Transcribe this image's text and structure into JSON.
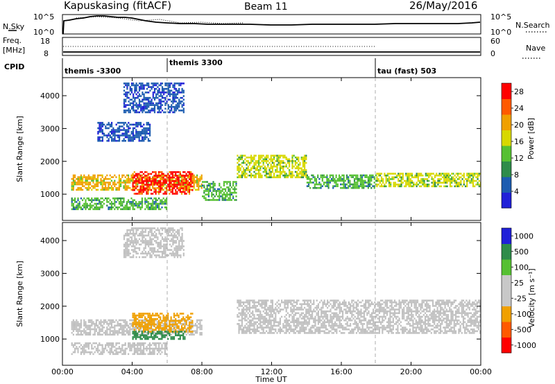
{
  "header": {
    "station": "Kapuskasing (fitACF)",
    "beam": "Beam 11",
    "date": "26/May/2016"
  },
  "nsky_panel": {
    "left_label": "N.Sky",
    "left_ticks": [
      "10^5",
      "10^0"
    ],
    "right_label": "N.Search",
    "right_ticks": [
      "10^5",
      "10^0"
    ]
  },
  "freq_panel": {
    "left_label_top": "Freq.",
    "left_label_bottom": "[MHz]",
    "left_ticks": [
      "18",
      "8"
    ],
    "right_label": "Nave",
    "right_ticks": [
      "60",
      "0"
    ]
  },
  "cpid_panel": {
    "label": "CPID",
    "modes": [
      {
        "name": "themis -3300",
        "start_hour": 0
      },
      {
        "name": "themis 3300",
        "start_hour": 6
      },
      {
        "name": "tau (fast) 503",
        "start_hour": 18
      }
    ]
  },
  "time_axis": {
    "label": "Time UT",
    "ticks": [
      "00:00",
      "04:00",
      "08:00",
      "12:00",
      "16:00",
      "20:00",
      "00:00"
    ]
  },
  "colors": {
    "power_scale": [
      "#2020d8",
      "#1c5cb0",
      "#2e8c4a",
      "#56c032",
      "#d8d800",
      "#f0a000",
      "#ff5a00",
      "#ff0000"
    ],
    "velocity_scale": [
      "#ff0000",
      "#ff5a00",
      "#f0a000",
      "#c8c8c8",
      "#c8c8c8",
      "#56c032",
      "#2e8c4a",
      "#2020d8"
    ],
    "ground_scatter": "#c0c0c0"
  },
  "chart_data": [
    {
      "type": "heatmap",
      "title": "Power",
      "xlabel": "Time UT",
      "ylabel": "Slant Range [km]",
      "xlim_hours": [
        0,
        24
      ],
      "ylim": [
        200,
        4550
      ],
      "y_ticks": [
        "1000",
        "2000",
        "3000",
        "4000"
      ],
      "colorbar": {
        "label": "Power [dB]",
        "ticks": [
          "4",
          "8",
          "12",
          "16",
          "20",
          "24",
          "28"
        ],
        "range": [
          0,
          30
        ]
      },
      "echo_bands": [
        {
          "t_start": 0.5,
          "t_end": 8.0,
          "range_low": 1150,
          "range_high": 1600,
          "power": 22
        },
        {
          "t_start": 4.0,
          "t_end": 7.5,
          "range_low": 1000,
          "range_high": 1700,
          "power": 29
        },
        {
          "t_start": 0.5,
          "t_end": 6.0,
          "range_low": 550,
          "range_high": 900,
          "power": 14
        },
        {
          "t_start": 8.0,
          "t_end": 10.0,
          "range_low": 800,
          "range_high": 1400,
          "power": 12
        },
        {
          "t_start": 10.0,
          "t_end": 14.0,
          "range_low": 1500,
          "range_high": 2200,
          "power": 16
        },
        {
          "t_start": 14.0,
          "t_end": 18.0,
          "range_low": 1200,
          "range_high": 1600,
          "power": 14
        },
        {
          "t_start": 18.0,
          "t_end": 24.0,
          "range_low": 1250,
          "range_high": 1650,
          "power": 18
        },
        {
          "t_start": 3.5,
          "t_end": 7.0,
          "range_low": 3500,
          "range_high": 4400,
          "power": 7
        },
        {
          "t_start": 2.0,
          "t_end": 5.0,
          "range_low": 2600,
          "range_high": 3200,
          "power": 6
        }
      ]
    },
    {
      "type": "heatmap",
      "title": "Velocity",
      "xlabel": "Time UT",
      "ylabel": "Slant Range [km]",
      "xlim_hours": [
        0,
        24
      ],
      "ylim": [
        200,
        4550
      ],
      "y_ticks": [
        "1000",
        "2000",
        "3000",
        "4000"
      ],
      "colorbar": {
        "label": "Velocity [m s⁻¹]",
        "ticks": [
          "1000",
          "500",
          "100",
          "25",
          "-25",
          "-100",
          "-500",
          "-1000"
        ],
        "range": [
          -1000,
          1000
        ]
      },
      "echo_bands": [
        {
          "t_start": 0.5,
          "t_end": 8.0,
          "range_low": 1150,
          "range_high": 1600,
          "velocity": 0
        },
        {
          "t_start": 4.0,
          "t_end": 7.5,
          "range_low": 1200,
          "range_high": 1800,
          "velocity": -300
        },
        {
          "t_start": 4.0,
          "t_end": 7.0,
          "range_low": 1000,
          "range_high": 1250,
          "velocity": 300
        },
        {
          "t_start": 0.5,
          "t_end": 6.0,
          "range_low": 550,
          "range_high": 900,
          "velocity": 0
        },
        {
          "t_start": 10.0,
          "t_end": 24.0,
          "range_low": 1200,
          "range_high": 2200,
          "velocity": 0
        },
        {
          "t_start": 3.5,
          "t_end": 7.0,
          "range_low": 3500,
          "range_high": 4400,
          "velocity": 0
        }
      ]
    }
  ]
}
